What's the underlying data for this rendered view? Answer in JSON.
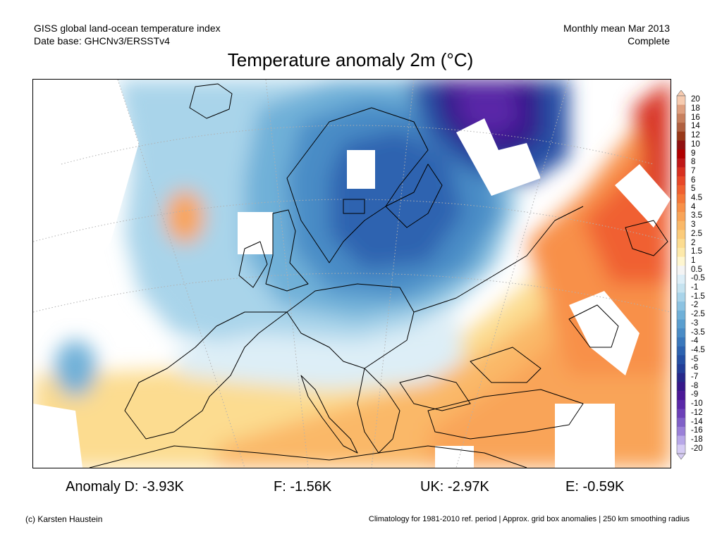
{
  "header": {
    "line1_left": "GISS global land-ocean temperature index",
    "line2_left": "Date base: GHCNv3/ERSSTv4",
    "line1_right": "Monthly mean Mar 2013",
    "line2_right": "Complete"
  },
  "title": "Temperature anomaly 2m (°C)",
  "colorbar": {
    "labels": [
      "20",
      "18",
      "16",
      "14",
      "12",
      "10",
      "9",
      "8",
      "7",
      "6",
      "5",
      "4.5",
      "4",
      "3.5",
      "3",
      "2.5",
      "2",
      "1.5",
      "1",
      "0.5",
      "-0.5",
      "-1",
      "-1.5",
      "-2",
      "-2.5",
      "-3",
      "-3.5",
      "-4",
      "-4.5",
      "-5",
      "-6",
      "-7",
      "-8",
      "-9",
      "-10",
      "-12",
      "-14",
      "-16",
      "-18",
      "-20"
    ],
    "colors": [
      "#f6cbb0",
      "#dfa080",
      "#c8805e",
      "#b06040",
      "#983818",
      "#901010",
      "#b00000",
      "#c01818",
      "#d83020",
      "#e84828",
      "#f06030",
      "#f57838",
      "#f89048",
      "#f9a458",
      "#fab868",
      "#fbcb7a",
      "#fcdc90",
      "#fde9aa",
      "#fef6d0",
      "#f4f4f4",
      "#ddeef7",
      "#c6e3f0",
      "#a9d4ea",
      "#8cc3e2",
      "#6fb0d8",
      "#5a9ecf",
      "#4a8cc6",
      "#3a78bc",
      "#2d63b0",
      "#2550a4",
      "#223e98",
      "#26288a",
      "#36188a",
      "#4a1896",
      "#5a28a8",
      "#6c40b8",
      "#8060c8",
      "#9a80d8",
      "#b8a8e8",
      "#d6ccf4"
    ]
  },
  "stats": [
    {
      "label": "Anomaly D:",
      "value": "-3.93K"
    },
    {
      "label": "F:",
      "value": "-1.56K"
    },
    {
      "label": "UK:",
      "value": "-2.97K"
    },
    {
      "label": "E:",
      "value": "-0.59K"
    }
  ],
  "footer": {
    "credit": "(c) Karsten Haustein",
    "note": "Climatology for 1981-2010 ref. period | Approx. grid box anomalies | 250 km smoothing radius"
  }
}
